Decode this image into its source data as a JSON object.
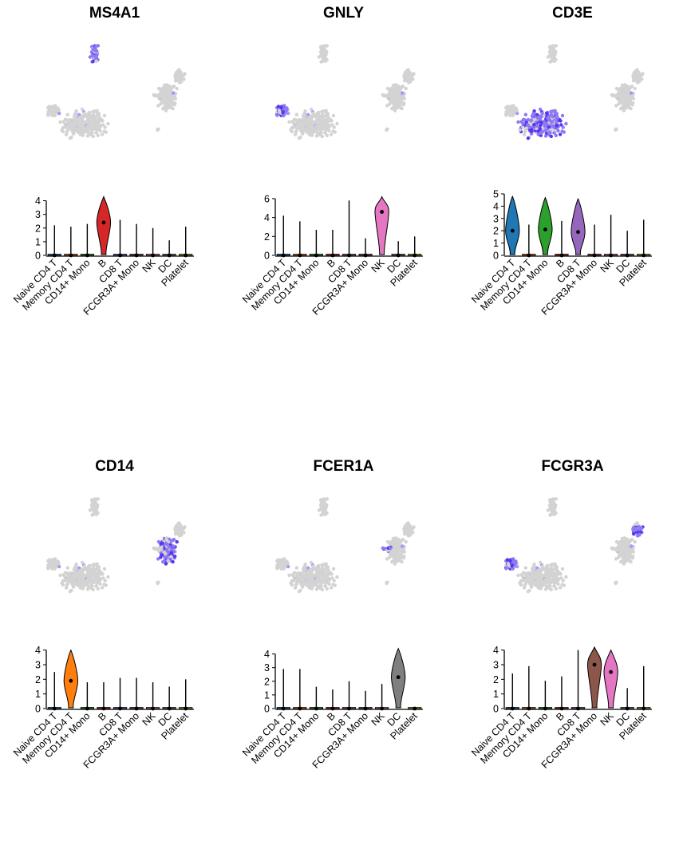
{
  "groups": [
    "Naive CD4 T",
    "Memory CD4 T",
    "CD14+ Mono",
    "B",
    "CD8 T",
    "FCGR3A+ Mono",
    "NK",
    "DC",
    "Platelet"
  ],
  "group_colors": [
    "#1f77b4",
    "#ff7f0e",
    "#2ca02c",
    "#d62728",
    "#9467bd",
    "#8c564b",
    "#e377c2",
    "#7f7f7f",
    "#bcbd22"
  ],
  "chart_data": [
    {
      "type": "violin",
      "title": "MS4A1",
      "categories": [
        "Naive CD4 T",
        "Memory CD4 T",
        "CD14+ Mono",
        "B",
        "CD8 T",
        "FCGR3A+ Mono",
        "NK",
        "DC",
        "Platelet"
      ],
      "ylim": [
        0,
        4.5
      ],
      "yticks": [
        0,
        1,
        2,
        3,
        4
      ],
      "max": [
        2.2,
        2.1,
        2.3,
        4.3,
        2.6,
        2.3,
        2.0,
        1.1,
        2.1
      ],
      "median": [
        0,
        0,
        0,
        2.4,
        0,
        0,
        0,
        0,
        0
      ],
      "umap_highlight": "B"
    },
    {
      "type": "violin",
      "title": "GNLY",
      "categories": [
        "Naive CD4 T",
        "Memory CD4 T",
        "CD14+ Mono",
        "B",
        "CD8 T",
        "FCGR3A+ Mono",
        "NK",
        "DC",
        "Platelet"
      ],
      "ylim": [
        0,
        6.5
      ],
      "yticks": [
        0,
        2,
        4,
        6
      ],
      "max": [
        4.2,
        3.6,
        2.7,
        2.7,
        5.8,
        1.8,
        6.2,
        1.5,
        2.0
      ],
      "median": [
        0,
        0,
        0,
        0,
        0,
        0,
        4.6,
        0,
        0
      ],
      "umap_highlight": "NK"
    },
    {
      "type": "violin",
      "title": "CD3E",
      "categories": [
        "Naive CD4 T",
        "Memory CD4 T",
        "CD14+ Mono",
        "B",
        "CD8 T",
        "FCGR3A+ Mono",
        "NK",
        "DC",
        "Platelet"
      ],
      "ylim": [
        0,
        5
      ],
      "yticks": [
        0,
        1,
        2,
        3,
        4,
        5
      ],
      "max": [
        4.8,
        2.5,
        4.7,
        2.8,
        4.6,
        2.5,
        3.3,
        2.0,
        2.9
      ],
      "median": [
        2.0,
        0,
        2.1,
        0,
        1.9,
        0,
        0,
        0,
        0
      ],
      "umap_highlight": "T cells"
    },
    {
      "type": "violin",
      "title": "CD14",
      "categories": [
        "Naive CD4 T",
        "Memory CD4 T",
        "CD14+ Mono",
        "B",
        "CD8 T",
        "FCGR3A+ Mono",
        "NK",
        "DC",
        "Platelet"
      ],
      "ylim": [
        0,
        4.2
      ],
      "yticks": [
        0,
        1,
        2,
        3,
        4
      ],
      "max": [
        2.5,
        4.0,
        1.8,
        1.8,
        2.1,
        2.1,
        1.8,
        1.5,
        2.0
      ],
      "median": [
        0,
        1.9,
        0,
        0,
        0,
        0,
        0,
        0,
        0
      ],
      "umap_highlight": "CD14+ Mono"
    },
    {
      "type": "violin",
      "title": "FCER1A",
      "categories": [
        "Naive CD4 T",
        "Memory CD4 T",
        "CD14+ Mono",
        "B",
        "CD8 T",
        "FCGR3A+ Mono",
        "NK",
        "DC",
        "Platelet"
      ],
      "ylim": [
        0,
        4.5
      ],
      "yticks": [
        0,
        1,
        2,
        3,
        4
      ],
      "max": [
        2.9,
        2.9,
        1.6,
        1.4,
        2.0,
        1.3,
        1.8,
        4.4,
        0.1
      ],
      "median": [
        0,
        0,
        0,
        0,
        0,
        0,
        0,
        2.3,
        0
      ],
      "umap_highlight": "DC"
    },
    {
      "type": "violin",
      "title": "FCGR3A",
      "categories": [
        "Naive CD4 T",
        "Memory CD4 T",
        "CD14+ Mono",
        "B",
        "CD8 T",
        "FCGR3A+ Mono",
        "NK",
        "DC",
        "Platelet"
      ],
      "ylim": [
        0,
        4.2
      ],
      "yticks": [
        0,
        1,
        2,
        3,
        4
      ],
      "max": [
        2.4,
        2.9,
        1.9,
        2.2,
        4.0,
        4.2,
        4.0,
        1.4,
        2.9
      ],
      "median": [
        0,
        0,
        0,
        0,
        0,
        3.0,
        2.5,
        0,
        0
      ],
      "umap_highlight": "FCGR3A+ Mono and NK"
    }
  ]
}
